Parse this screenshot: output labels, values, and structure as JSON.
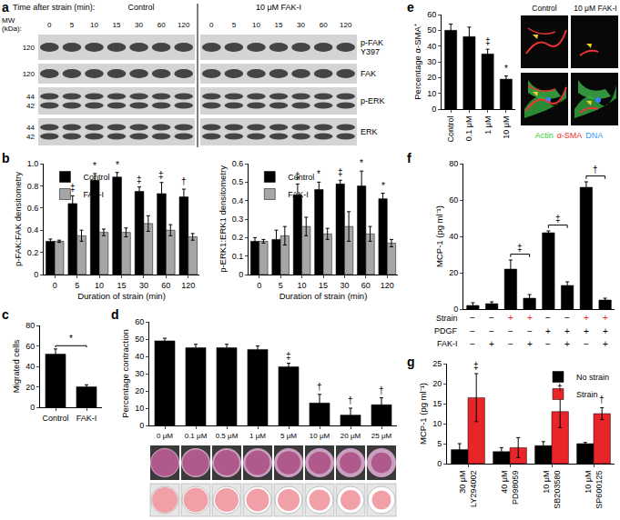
{
  "blot": {
    "label": "a",
    "header": "Time after strain (min):",
    "mw_header": [
      "MW",
      "(kDa):"
    ],
    "groups": [
      {
        "title": "Control",
        "lanes": [
          0,
          5,
          10,
          15,
          30,
          60,
          120
        ]
      },
      {
        "title": "10 μM FAK-I",
        "lanes": [
          0,
          5,
          10,
          15,
          30,
          60,
          120
        ]
      }
    ],
    "rows": [
      {
        "name": "p-FAK Y397",
        "mw": [
          "120"
        ]
      },
      {
        "name": "FAK",
        "mw": [
          "120"
        ]
      },
      {
        "name": "p-ERK",
        "mw": [
          "44",
          "42"
        ]
      },
      {
        "name": "ERK",
        "mw": [
          "44",
          "42"
        ]
      }
    ]
  },
  "micrographs": {
    "columns": [
      "Control",
      "10 μM FAK-I"
    ],
    "stain_labels": [
      {
        "text": "Actin",
        "color": "#33cc33"
      },
      {
        "text": "α-SMA",
        "color": "#ee3333"
      },
      {
        "text": "DNA",
        "color": "#3399ff"
      }
    ]
  },
  "chart_data": [
    {
      "label": "b",
      "type": "bar",
      "categories": [
        "0",
        "5",
        "10",
        "15",
        "30",
        "60",
        "120"
      ],
      "x_label": "Duration of strain (min)",
      "y_label": "p-FAK:FAK densitometry",
      "ylim": [
        0,
        1
      ],
      "yticks": [
        0,
        0.2,
        0.4,
        0.6,
        0.8,
        {
          "value": 1,
          "label": "1.0"
        }
      ],
      "legend": "top left",
      "series": [
        {
          "name": "Control",
          "color": "#000000",
          "values": [
            0.3,
            0.64,
            0.85,
            0.88,
            0.75,
            0.73,
            0.7
          ],
          "errors": [
            0.02,
            0.07,
            0.06,
            0.04,
            0.04,
            0.1,
            0.07
          ]
        },
        {
          "name": "FAK-I",
          "color": "#a6a6a6",
          "values": [
            0.3,
            0.35,
            0.38,
            0.38,
            0.46,
            0.4,
            0.34
          ],
          "errors": [
            0.01,
            0.05,
            0.03,
            0.04,
            0.07,
            0.05,
            0.03
          ]
        }
      ],
      "annotations": [
        {
          "category": "5",
          "series": "Control",
          "text": "‡"
        },
        {
          "category": "10",
          "series": "Control",
          "text": "*"
        },
        {
          "category": "15",
          "series": "Control",
          "text": "*"
        },
        {
          "category": "30",
          "series": "Control",
          "text": "‡"
        },
        {
          "category": "60",
          "series": "Control",
          "text": "‡"
        },
        {
          "category": "120",
          "series": "Control",
          "text": "†"
        }
      ]
    },
    {
      "type": "bar",
      "categories": [
        "0",
        "5",
        "10",
        "15",
        "30",
        "60",
        "120"
      ],
      "x_label": "Duration of strain (min)",
      "y_label": "p-ERK1:ERK1 densitometry",
      "ylim": [
        0,
        0.6
      ],
      "yticks": [
        0,
        0.1,
        0.2,
        0.3,
        0.4,
        0.5,
        0.6
      ],
      "legend": "top left",
      "series": [
        {
          "name": "Control",
          "color": "#000000",
          "values": [
            0.18,
            0.19,
            0.43,
            0.46,
            0.49,
            0.48,
            0.41
          ],
          "errors": [
            0.02,
            0.05,
            0.06,
            0.04,
            0.02,
            0.08,
            0.03
          ]
        },
        {
          "name": "FAK-I",
          "color": "#a6a6a6",
          "values": [
            0.18,
            0.21,
            0.26,
            0.22,
            0.26,
            0.22,
            0.17
          ],
          "errors": [
            0.01,
            0.05,
            0.05,
            0.03,
            0.08,
            0.04,
            0.02
          ]
        }
      ],
      "annotations": [
        {
          "category": "10",
          "series": "Control",
          "text": "‡"
        },
        {
          "category": "15",
          "series": "Control",
          "text": "*"
        },
        {
          "category": "30",
          "series": "Control",
          "text": "‡"
        },
        {
          "category": "60",
          "series": "Control",
          "text": "*"
        },
        {
          "category": "120",
          "series": "Control",
          "text": "*"
        }
      ]
    },
    {
      "label": "c",
      "type": "bar",
      "categories": [
        "Control",
        "FAK-I"
      ],
      "y_label": "Migrated cells",
      "ylim": [
        0,
        80
      ],
      "yticks": [
        0,
        20,
        40,
        60,
        80
      ],
      "color": "#000000",
      "values": [
        52,
        20
      ],
      "errors": [
        5,
        2
      ],
      "brackets": [
        {
          "from": 0,
          "to": 1,
          "text": "*"
        }
      ]
    },
    {
      "label": "d",
      "type": "bar",
      "categories": [
        "0 μM",
        "0.1 μM",
        "0.5 μM",
        "1 μM",
        "5 μM",
        "10 μM",
        "20 μM",
        "25 μM"
      ],
      "y_label": "Percentage contraction",
      "ylim": [
        0,
        60
      ],
      "yticks": [
        0,
        10,
        20,
        30,
        40,
        50,
        60
      ],
      "color": "#000000",
      "values": [
        49,
        45,
        45,
        44,
        34,
        13,
        6,
        12
      ],
      "errors": [
        1.5,
        2,
        2,
        2,
        2,
        5,
        4,
        4
      ],
      "annotations": [
        {
          "category": "5 μM",
          "text": "‡"
        },
        {
          "category": "10 μM",
          "text": "†"
        },
        {
          "category": "20 μM",
          "text": "†"
        },
        {
          "category": "25 μM",
          "text": "†"
        }
      ]
    },
    {
      "label": "e",
      "type": "bar",
      "categories": [
        "Control",
        "0.1 μM",
        "1 μM",
        "10 μM"
      ],
      "y_label": "Percentage α-SMA⁺",
      "ylim": [
        0,
        60
      ],
      "yticks": [
        0,
        10,
        20,
        30,
        40,
        50,
        60
      ],
      "color": "#000000",
      "values": [
        50,
        46,
        35,
        19
      ],
      "errors": [
        4,
        6,
        3,
        2
      ],
      "annotations": [
        {
          "category": "1 μM",
          "text": "‡"
        },
        {
          "category": "10 μM",
          "text": "*"
        }
      ]
    },
    {
      "label": "f",
      "type": "bar",
      "categories": [
        null,
        null,
        null,
        null,
        null,
        null,
        null,
        null
      ],
      "y_label": "MCP-1 (pg ml⁻¹)",
      "ylim": [
        0,
        80
      ],
      "yticks": [
        0,
        20,
        40,
        60,
        80
      ],
      "tick_labels": "y",
      "color": "#000000",
      "values": [
        2,
        3,
        22,
        6,
        42,
        13,
        67,
        5
      ],
      "errors": [
        1.5,
        1,
        5,
        2,
        1,
        2,
        3,
        1
      ],
      "brackets": [
        {
          "from": 2,
          "to": 3,
          "text": "‡"
        },
        {
          "from": 4,
          "to": 5,
          "text": "‡"
        },
        {
          "from": 6,
          "to": 7,
          "text": "†"
        }
      ],
      "table": {
        "rows": [
          {
            "label": "Strain",
            "marks": [
              "−",
              "−",
              "+",
              "+",
              "−",
              "−",
              "+",
              "+"
            ],
            "colors": [
              "#000000",
              "#000000",
              "#e8262a",
              "#e8262a",
              "#000000",
              "#000000",
              "#e8262a",
              "#e8262a"
            ]
          },
          {
            "label": "PDGF",
            "marks": [
              "−",
              "−",
              "−",
              "−",
              "+",
              "+",
              "+",
              "+"
            ]
          },
          {
            "label": "FAK-I",
            "marks": [
              "−",
              "+",
              "−",
              "+",
              "−",
              "+",
              "−",
              "+"
            ]
          }
        ]
      }
    },
    {
      "label": "g",
      "type": "bar",
      "categories": [
        "30 μM\nLY294002",
        "40 μM\nPD98059",
        "10 μM\nSB203580",
        "10 μM\nSP600125"
      ],
      "y_label": "MCP-1 (pg ml⁻¹)",
      "ylim": [
        0,
        25
      ],
      "yticks": [
        0,
        5,
        10,
        15,
        20,
        25
      ],
      "legend": "top right",
      "series": [
        {
          "name": "No strain",
          "color": "#000000",
          "values": [
            3.5,
            3,
            4.5,
            5
          ],
          "errors": [
            1.5,
            1,
            1,
            0.3
          ]
        },
        {
          "name": "Strain",
          "color": "#e8262a",
          "values": [
            16.5,
            4,
            13,
            12.5
          ],
          "errors": [
            6,
            2.5,
            4,
            1.5
          ]
        }
      ],
      "annotations": [
        {
          "category": "30 μM\nLY294002",
          "series": "Strain",
          "text": "‡"
        },
        {
          "category": "10 μM\nSB203580",
          "series": "Strain",
          "text": "†"
        },
        {
          "category": "10 μM\nSP600125",
          "series": "Strain",
          "text": "†"
        }
      ]
    }
  ]
}
